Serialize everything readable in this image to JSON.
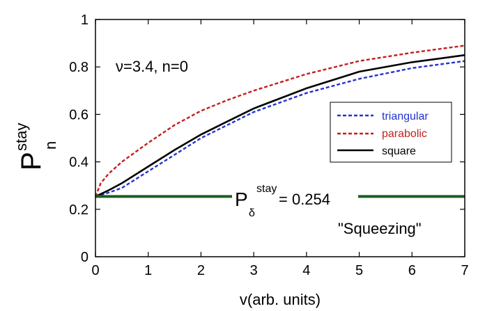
{
  "chart_data": {
    "type": "line",
    "title": "",
    "xlabel": "v(arb. units)",
    "ylabel": {
      "main": "P",
      "sub": "n",
      "sup": "stay"
    },
    "xlim": [
      0,
      7
    ],
    "ylim": [
      0,
      1
    ],
    "x_ticks": [
      "0",
      "1",
      "2",
      "3",
      "4",
      "5",
      "6",
      "7"
    ],
    "y_ticks": [
      "0",
      "0.2",
      "0.4",
      "0.6",
      "0.8",
      "1"
    ],
    "grid": false,
    "legend_position": "right",
    "series": [
      {
        "name": "triangular",
        "color": "#2233cc",
        "style": "dashed",
        "x": [
          0,
          0.25,
          0.5,
          1,
          1.5,
          2,
          2.5,
          3,
          4,
          5,
          6,
          7
        ],
        "y": [
          0.254,
          0.27,
          0.29,
          0.36,
          0.43,
          0.5,
          0.555,
          0.61,
          0.69,
          0.75,
          0.795,
          0.825
        ]
      },
      {
        "name": "parabolic",
        "color": "#c41e1e",
        "style": "dashed",
        "x": [
          0,
          0.1,
          0.25,
          0.5,
          1,
          1.5,
          2,
          2.5,
          3,
          4,
          5,
          6,
          7
        ],
        "y": [
          0.254,
          0.31,
          0.35,
          0.4,
          0.48,
          0.555,
          0.615,
          0.66,
          0.7,
          0.77,
          0.825,
          0.86,
          0.89
        ]
      },
      {
        "name": "square",
        "color": "#000000",
        "style": "solid",
        "x": [
          0,
          0.25,
          0.5,
          1,
          1.5,
          2,
          2.5,
          3,
          4,
          5,
          6,
          7
        ],
        "y": [
          0.254,
          0.28,
          0.31,
          0.38,
          0.45,
          0.515,
          0.57,
          0.625,
          0.71,
          0.78,
          0.82,
          0.85
        ]
      },
      {
        "name": "",
        "color": "#1f5f1f",
        "style": "solid",
        "x": [
          0,
          7
        ],
        "y": [
          0.254,
          0.254
        ]
      }
    ],
    "annotations": {
      "params": "ν=3.4, n=0",
      "hline_label": {
        "main": "P",
        "sub": "δ",
        "sup": "stay",
        "value": "= 0.254"
      },
      "note": "\"Squeezing\""
    }
  }
}
